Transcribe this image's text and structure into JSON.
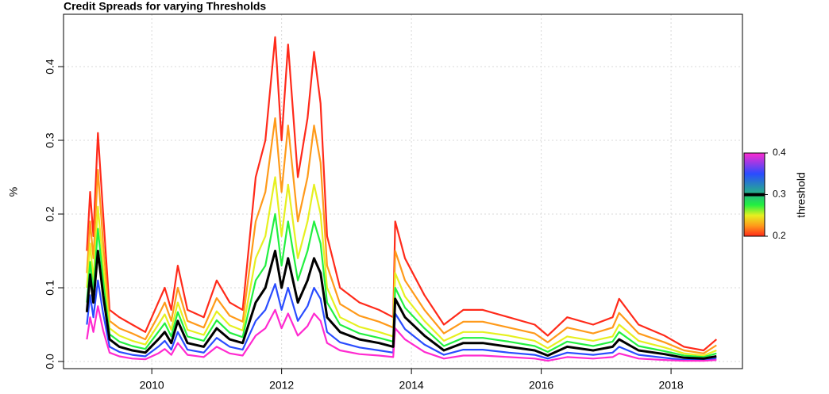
{
  "chart_data": {
    "type": "line",
    "title": "Credit Spreads for varying Thresholds",
    "ylabel": "%",
    "x": [
      2009.0,
      2009.05,
      2009.1,
      2009.17,
      2009.25,
      2009.35,
      2009.5,
      2009.7,
      2009.9,
      2010.1,
      2010.2,
      2010.3,
      2010.4,
      2010.55,
      2010.8,
      2011.0,
      2011.2,
      2011.4,
      2011.6,
      2011.75,
      2011.9,
      2012.0,
      2012.1,
      2012.25,
      2012.4,
      2012.5,
      2012.6,
      2012.7,
      2012.9,
      2013.2,
      2013.5,
      2013.72,
      2013.75,
      2013.9,
      2014.2,
      2014.5,
      2014.8,
      2015.1,
      2015.5,
      2015.9,
      2016.1,
      2016.4,
      2016.8,
      2017.1,
      2017.2,
      2017.5,
      2017.9,
      2018.2,
      2018.5,
      2018.7
    ],
    "series": [
      {
        "threshold": 0.2,
        "color": "#ff2a1a",
        "values": [
          0.15,
          0.23,
          0.17,
          0.31,
          0.2,
          0.07,
          0.06,
          0.05,
          0.04,
          0.08,
          0.1,
          0.07,
          0.13,
          0.07,
          0.06,
          0.11,
          0.08,
          0.07,
          0.25,
          0.3,
          0.44,
          0.3,
          0.43,
          0.25,
          0.33,
          0.42,
          0.35,
          0.17,
          0.1,
          0.08,
          0.07,
          0.06,
          0.19,
          0.14,
          0.09,
          0.05,
          0.07,
          0.07,
          0.06,
          0.05,
          0.035,
          0.06,
          0.05,
          0.06,
          0.085,
          0.05,
          0.035,
          0.02,
          0.015,
          0.03
        ]
      },
      {
        "threshold": 0.225,
        "color": "#ff9a1a",
        "values": [
          0.12,
          0.19,
          0.14,
          0.26,
          0.16,
          0.055,
          0.045,
          0.038,
          0.03,
          0.062,
          0.08,
          0.055,
          0.1,
          0.055,
          0.046,
          0.086,
          0.062,
          0.054,
          0.19,
          0.23,
          0.33,
          0.23,
          0.32,
          0.19,
          0.25,
          0.32,
          0.27,
          0.13,
          0.078,
          0.062,
          0.054,
          0.046,
          0.15,
          0.11,
          0.07,
          0.038,
          0.054,
          0.054,
          0.046,
          0.038,
          0.026,
          0.046,
          0.038,
          0.046,
          0.066,
          0.038,
          0.026,
          0.015,
          0.011,
          0.022
        ]
      },
      {
        "threshold": 0.25,
        "color": "#e6f020",
        "values": [
          0.1,
          0.16,
          0.11,
          0.21,
          0.13,
          0.045,
          0.035,
          0.028,
          0.023,
          0.05,
          0.064,
          0.043,
          0.08,
          0.043,
          0.036,
          0.068,
          0.049,
          0.042,
          0.14,
          0.17,
          0.25,
          0.17,
          0.24,
          0.14,
          0.19,
          0.24,
          0.2,
          0.1,
          0.06,
          0.047,
          0.04,
          0.034,
          0.12,
          0.088,
          0.055,
          0.028,
          0.04,
          0.04,
          0.035,
          0.028,
          0.018,
          0.034,
          0.028,
          0.034,
          0.05,
          0.028,
          0.019,
          0.011,
          0.008,
          0.015
        ]
      },
      {
        "threshold": 0.275,
        "color": "#22f040",
        "values": [
          0.08,
          0.135,
          0.095,
          0.18,
          0.11,
          0.037,
          0.027,
          0.021,
          0.017,
          0.04,
          0.052,
          0.034,
          0.067,
          0.034,
          0.028,
          0.056,
          0.039,
          0.033,
          0.11,
          0.13,
          0.2,
          0.13,
          0.19,
          0.11,
          0.15,
          0.19,
          0.16,
          0.08,
          0.05,
          0.038,
          0.032,
          0.027,
          0.1,
          0.073,
          0.045,
          0.021,
          0.032,
          0.032,
          0.027,
          0.021,
          0.013,
          0.027,
          0.021,
          0.027,
          0.04,
          0.021,
          0.014,
          0.008,
          0.006,
          0.011
        ]
      },
      {
        "threshold": 0.35,
        "color": "#2a4cff",
        "values": [
          0.05,
          0.09,
          0.06,
          0.11,
          0.065,
          0.02,
          0.013,
          0.009,
          0.007,
          0.02,
          0.028,
          0.016,
          0.04,
          0.016,
          0.012,
          0.032,
          0.02,
          0.016,
          0.055,
          0.07,
          0.105,
          0.07,
          0.1,
          0.055,
          0.075,
          0.1,
          0.085,
          0.04,
          0.026,
          0.019,
          0.015,
          0.012,
          0.065,
          0.044,
          0.023,
          0.009,
          0.016,
          0.016,
          0.012,
          0.009,
          0.004,
          0.012,
          0.009,
          0.012,
          0.02,
          0.009,
          0.005,
          0.002,
          0.002,
          0.004
        ]
      },
      {
        "threshold": 0.4,
        "color": "#ff2ad0",
        "values": [
          0.03,
          0.06,
          0.04,
          0.075,
          0.042,
          0.012,
          0.007,
          0.004,
          0.003,
          0.011,
          0.017,
          0.009,
          0.025,
          0.009,
          0.006,
          0.02,
          0.011,
          0.008,
          0.035,
          0.045,
          0.07,
          0.045,
          0.065,
          0.035,
          0.048,
          0.065,
          0.055,
          0.025,
          0.015,
          0.01,
          0.008,
          0.006,
          0.045,
          0.03,
          0.013,
          0.004,
          0.008,
          0.008,
          0.006,
          0.004,
          0.001,
          0.006,
          0.004,
          0.006,
          0.011,
          0.004,
          0.002,
          0.001,
          0.001,
          0.002
        ]
      },
      {
        "threshold": 0.3,
        "color": "#000000",
        "values": [
          0.067,
          0.118,
          0.08,
          0.15,
          0.09,
          0.03,
          0.02,
          0.015,
          0.012,
          0.03,
          0.04,
          0.025,
          0.055,
          0.025,
          0.02,
          0.045,
          0.03,
          0.025,
          0.08,
          0.1,
          0.15,
          0.1,
          0.14,
          0.08,
          0.11,
          0.14,
          0.12,
          0.06,
          0.04,
          0.03,
          0.025,
          0.02,
          0.085,
          0.06,
          0.035,
          0.015,
          0.025,
          0.025,
          0.02,
          0.015,
          0.008,
          0.02,
          0.015,
          0.02,
          0.03,
          0.015,
          0.01,
          0.005,
          0.004,
          0.007
        ]
      }
    ],
    "xlim": [
      2008.64,
      2019.1
    ],
    "xticks": [
      2010,
      2012,
      2014,
      2016,
      2018
    ],
    "ylim": [
      -0.0097,
      0.471
    ],
    "yticks": [
      {
        "value": 0,
        "label": "0.0"
      },
      0.1,
      0.2,
      0.3,
      0.4
    ],
    "grid": true,
    "colorbar": {
      "label": "threshold",
      "lim": [
        0.2,
        0.4
      ],
      "ticks": [
        0.2,
        0.3,
        0.4
      ]
    }
  }
}
